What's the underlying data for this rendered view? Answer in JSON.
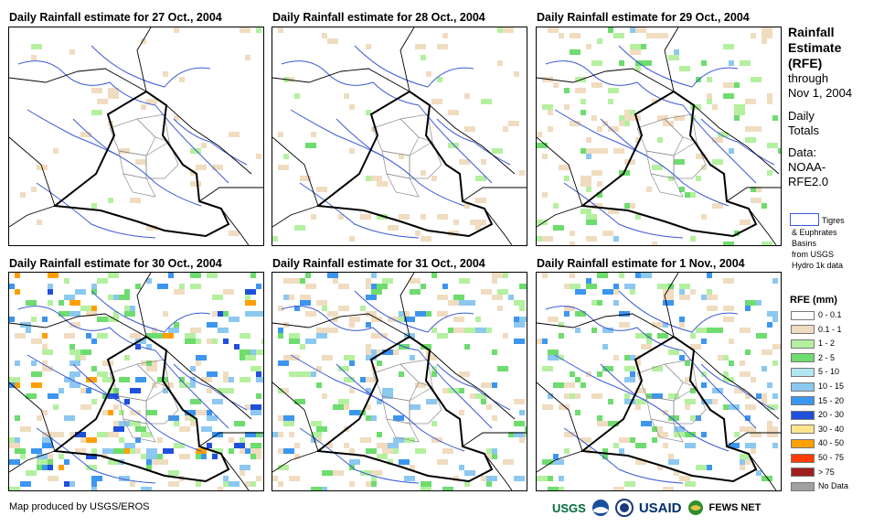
{
  "panels": [
    {
      "title": "Daily Rainfall estimate for 27 Oct., 2004",
      "intensity": 0
    },
    {
      "title": "Daily Rainfall estimate for 28 Oct., 2004",
      "intensity": 1
    },
    {
      "title": "Daily Rainfall estimate for 29 Oct., 2004",
      "intensity": 2
    },
    {
      "title": "Daily Rainfall estimate for 30 Oct., 2004",
      "intensity": 3
    },
    {
      "title": "Daily Rainfall estimate for 31 Oct., 2004",
      "intensity": 4
    },
    {
      "title": "Daily Rainfall estimate for 1 Nov., 2004",
      "intensity": 5
    }
  ],
  "side": {
    "title_1": "Rainfall",
    "title_2": "Estimate",
    "title_3": "(RFE)",
    "through": "through",
    "date": "Nov 1, 2004",
    "daily": "Daily",
    "totals": "Totals",
    "data_label": "Data:",
    "data_src_1": "NOAA-",
    "data_src_2": "RFE2.0",
    "basin_1": "Tigres",
    "basin_2": "& Euphrates",
    "basin_3": "Basins",
    "basin_4": "from USGS",
    "basin_5": "Hydro 1k data",
    "legend_title": "RFE (mm)"
  },
  "legend": [
    {
      "label": "0 - 0.1",
      "color": "#ffffff"
    },
    {
      "label": "0.1 - 1",
      "color": "#f0dcc0"
    },
    {
      "label": "1 - 2",
      "color": "#b4f0a0"
    },
    {
      "label": "2 - 5",
      "color": "#6edc6e"
    },
    {
      "label": "5 - 10",
      "color": "#b4e6f0"
    },
    {
      "label": "10 - 15",
      "color": "#8cc8f0"
    },
    {
      "label": "15 - 20",
      "color": "#3c96f0"
    },
    {
      "label": "20 - 30",
      "color": "#1e50dc"
    },
    {
      "label": "30 - 40",
      "color": "#ffe68c"
    },
    {
      "label": "40 - 50",
      "color": "#ffa000"
    },
    {
      "label": "50 - 75",
      "color": "#ff3c00"
    },
    {
      "label": "> 75",
      "color": "#a01e1e"
    },
    {
      "label": "No Data",
      "color": "#a0a0a0"
    }
  ],
  "footer": {
    "credit": "Map produced by USGS/EROS"
  },
  "logos": {
    "usgs": "USGS",
    "usaid": "USAID",
    "fews": "FEWS NET"
  }
}
